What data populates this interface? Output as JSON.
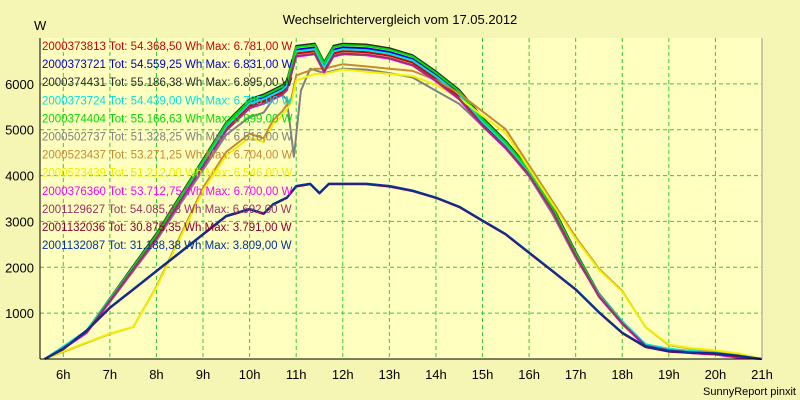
{
  "chart_data": {
    "type": "line",
    "title": "Wechselrichtervergleich vom 17.05.2012",
    "ylabel": "W",
    "footer": "SunnyReport pinxit",
    "x_ticks": [
      "6h",
      "7h",
      "8h",
      "9h",
      "10h",
      "11h",
      "12h",
      "13h",
      "14h",
      "15h",
      "16h",
      "17h",
      "18h",
      "19h",
      "20h",
      "21h"
    ],
    "y_ticks": [
      1000,
      2000,
      3000,
      4000,
      5000,
      6000
    ],
    "xlim": [
      5.5,
      21.0
    ],
    "ylim": [
      0,
      7000
    ],
    "grid": true,
    "legend_position": "top-left inside plot",
    "series": [
      {
        "name": "2000373813 Tot: 54.368,50 Wh Max: 6.781,00 W",
        "color": "#cc0000",
        "profile": "high",
        "scale": 0.99
      },
      {
        "name": "2000373721 Tot: 54.559,25 Wh Max: 6.831,00 W",
        "color": "#0000cc",
        "profile": "high",
        "scale": 1.0
      },
      {
        "name": "2000374431 Tot: 55.186,38 Wh Max: 6.895,00 W",
        "color": "#2a2a2a",
        "profile": "high",
        "scale": 1.01
      },
      {
        "name": "2000373724 Tot: 54.439,00 Wh Max: 6.765,00 W",
        "color": "#00e0e0",
        "profile": "high",
        "scale": 0.99
      },
      {
        "name": "2000374404 Tot: 55.166,63 Wh Max: 6.899,00 W",
        "color": "#00dd00",
        "profile": "high",
        "scale": 1.01
      },
      {
        "name": "2000502737 Tot: 51.328,25 Wh Max: 6.516,00 W",
        "color": "#808080",
        "profile": "gray",
        "scale": 0.96
      },
      {
        "name": "2000523437 Tot: 53.271,25 Wh Max: 6.704,00 W",
        "color": "#c88a2e",
        "profile": "late",
        "scale": 0.98
      },
      {
        "name": "2000523439 Tot: 51.212,00 Wh Max: 6.546,00 W",
        "color": "#f0f000",
        "profile": "late",
        "scale": 0.96
      },
      {
        "name": "2000376360 Tot: 53.712,75 Wh Max: 6.700,00 W",
        "color": "#ff00ff",
        "profile": "high",
        "scale": 0.98
      },
      {
        "name": "2001129627 Tot: 54.085,38 Wh Max: 6.692,00 W",
        "color": "#993366",
        "profile": "high",
        "scale": 0.98
      },
      {
        "name": "2001132036 Tot: 30.875,35 Wh Max: 3.791,00 W",
        "color": "#8b0030",
        "profile": "low",
        "scale": 1.0
      },
      {
        "name": "2001132087 Tot: 31.188,38 Wh Max: 3.809,00 W",
        "color": "#003399",
        "profile": "low",
        "scale": 1.0
      }
    ],
    "profiles": {
      "high": {
        "x": [
          5.6,
          6.0,
          6.5,
          7.0,
          7.5,
          8.0,
          8.5,
          9.0,
          9.5,
          10.0,
          10.3,
          10.5,
          10.7,
          10.8,
          11.0,
          11.4,
          11.6,
          11.8,
          12.0,
          12.5,
          13.0,
          13.5,
          14.0,
          14.5,
          15.0,
          15.5,
          16.0,
          16.5,
          17.0,
          17.5,
          18.0,
          18.5,
          19.0,
          19.5,
          20.0,
          20.5,
          21.0
        ],
        "y": [
          0,
          250,
          600,
          1300,
          2000,
          2700,
          3500,
          4300,
          5100,
          5600,
          5700,
          5800,
          5900,
          6000,
          6750,
          6800,
          6400,
          6750,
          6800,
          6780,
          6700,
          6550,
          6200,
          5800,
          5200,
          4700,
          4100,
          3300,
          2300,
          1400,
          800,
          300,
          200,
          150,
          120,
          50,
          0
        ]
      },
      "gray": {
        "x": [
          5.6,
          6.0,
          6.5,
          7.0,
          7.5,
          8.0,
          8.5,
          9.0,
          9.5,
          10.0,
          10.3,
          10.5,
          10.7,
          10.8,
          10.95,
          11.1,
          11.3,
          11.6,
          11.8,
          12.0,
          12.5,
          13.0,
          13.5,
          14.0,
          14.5,
          15.0,
          15.5,
          16.0,
          16.5,
          17.0,
          17.5,
          18.0,
          18.5,
          19.0,
          19.5,
          20.0,
          20.5,
          21.0
        ],
        "y": [
          0,
          250,
          600,
          1300,
          2000,
          2700,
          3500,
          4300,
          5100,
          5500,
          5600,
          5900,
          6000,
          5900,
          4600,
          6100,
          6600,
          6500,
          6550,
          6600,
          6580,
          6500,
          6400,
          6100,
          5800,
          5300,
          4800,
          4150,
          3300,
          2300,
          1450,
          800,
          300,
          200,
          150,
          120,
          50,
          0
        ]
      },
      "late": {
        "x": [
          5.6,
          6.0,
          6.5,
          7.0,
          7.5,
          8.0,
          8.5,
          9.0,
          9.5,
          10.0,
          10.3,
          10.5,
          10.7,
          10.9,
          11.0,
          11.4,
          11.6,
          11.8,
          12.0,
          12.5,
          13.0,
          13.5,
          14.0,
          14.5,
          15.0,
          15.5,
          16.0,
          16.5,
          17.0,
          17.5,
          18.0,
          18.5,
          19.0,
          19.5,
          20.0,
          20.5,
          21.0
        ],
        "y": [
          0,
          150,
          350,
          550,
          700,
          1600,
          2700,
          3800,
          4600,
          5000,
          4900,
          5300,
          5500,
          5800,
          6300,
          6450,
          6450,
          6500,
          6550,
          6500,
          6450,
          6400,
          6200,
          5900,
          5500,
          5100,
          4300,
          3500,
          2700,
          2000,
          1500,
          700,
          300,
          220,
          170,
          100,
          0
        ]
      },
      "low": {
        "x": [
          5.6,
          6.0,
          6.5,
          7.0,
          7.5,
          8.0,
          8.5,
          9.0,
          9.5,
          10.0,
          10.3,
          10.5,
          10.8,
          11.0,
          11.3,
          11.5,
          11.7,
          12.0,
          12.5,
          13.0,
          13.5,
          14.0,
          14.5,
          15.0,
          15.5,
          16.0,
          16.5,
          17.0,
          17.5,
          18.0,
          18.5,
          19.0,
          19.5,
          20.0,
          20.5,
          21.0
        ],
        "y": [
          0,
          200,
          600,
          1100,
          1500,
          1900,
          2300,
          2700,
          3100,
          3250,
          3150,
          3350,
          3500,
          3750,
          3800,
          3600,
          3800,
          3800,
          3800,
          3750,
          3650,
          3500,
          3300,
          3000,
          2700,
          2300,
          1900,
          1500,
          1000,
          550,
          250,
          150,
          120,
          100,
          50,
          0
        ]
      }
    }
  }
}
